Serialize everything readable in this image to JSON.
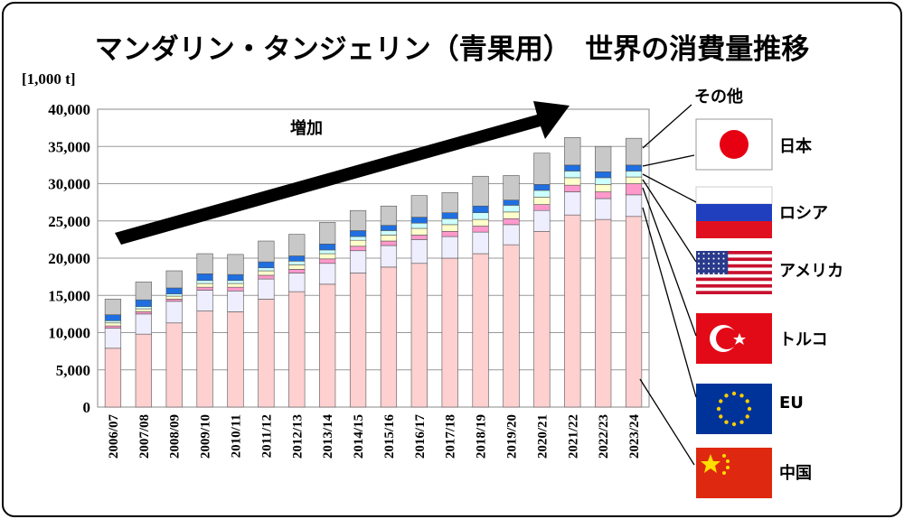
{
  "title": "マンダリン・タンジェリン（青果用）　世界の消費量推移",
  "unit_label": "[1,000 t]",
  "annotation": "増加",
  "colors": {
    "中国": "#ffd0d0",
    "EU": "#eeeeff",
    "トルコ": "#ff99cc",
    "アメリカ": "#ffffcc",
    "ロシア": "#ccffff",
    "日本": "#1f6fe0",
    "その他": "#c8c8c8"
  },
  "chart_data": {
    "type": "bar",
    "stacked": true,
    "ylim": [
      0,
      40000
    ],
    "yticks": [
      0,
      5000,
      10000,
      15000,
      20000,
      25000,
      30000,
      35000,
      40000
    ],
    "ytick_labels": [
      "0",
      "5,000",
      "10,000",
      "15,000",
      "20,000",
      "25,000",
      "30,000",
      "35,000",
      "40,000"
    ],
    "grid": true,
    "categories": [
      "2006/07",
      "2007/08",
      "2008/09",
      "2009/10",
      "2010/11",
      "2011/12",
      "2012/13",
      "2013/14",
      "2014/15",
      "2015/16",
      "2016/17",
      "2017/18",
      "2018/19",
      "2019/20",
      "2020/21",
      "2021/22",
      "2022/23",
      "2023/24"
    ],
    "series": [
      {
        "name": "中国",
        "values": [
          7900,
          9800,
          11300,
          12900,
          12800,
          14500,
          15500,
          16500,
          18000,
          18800,
          19300,
          20000,
          20600,
          21800,
          23600,
          25800,
          25200,
          25600
        ]
      },
      {
        "name": "EU",
        "values": [
          2700,
          2700,
          2900,
          2800,
          2800,
          2700,
          2500,
          2800,
          3000,
          2900,
          3200,
          2900,
          2900,
          2700,
          2800,
          3100,
          2800,
          2900
        ]
      },
      {
        "name": "トルコ",
        "values": [
          300,
          300,
          300,
          400,
          500,
          500,
          500,
          600,
          600,
          600,
          600,
          700,
          800,
          800,
          800,
          900,
          900,
          1500
        ]
      },
      {
        "name": "アメリカ",
        "values": [
          400,
          400,
          400,
          500,
          500,
          600,
          600,
          700,
          800,
          800,
          900,
          900,
          900,
          900,
          1000,
          1000,
          1000,
          900
        ]
      },
      {
        "name": "ロシア",
        "values": [
          300,
          300,
          300,
          400,
          400,
          400,
          500,
          500,
          500,
          600,
          700,
          800,
          900,
          900,
          900,
          900,
          900,
          800
        ]
      },
      {
        "name": "日本",
        "values": [
          800,
          900,
          800,
          900,
          800,
          800,
          700,
          800,
          800,
          700,
          800,
          800,
          900,
          700,
          800,
          800,
          800,
          800
        ]
      },
      {
        "name": "その他",
        "values": [
          2100,
          2400,
          2300,
          2700,
          2700,
          2800,
          2900,
          2900,
          2700,
          2600,
          2900,
          2700,
          4000,
          3300,
          4200,
          3700,
          3400,
          3600
        ]
      }
    ],
    "legend": [
      "その他",
      "日本",
      "ロシア",
      "アメリカ",
      "トルコ",
      "EU",
      "中国"
    ],
    "legend_position": "right"
  }
}
